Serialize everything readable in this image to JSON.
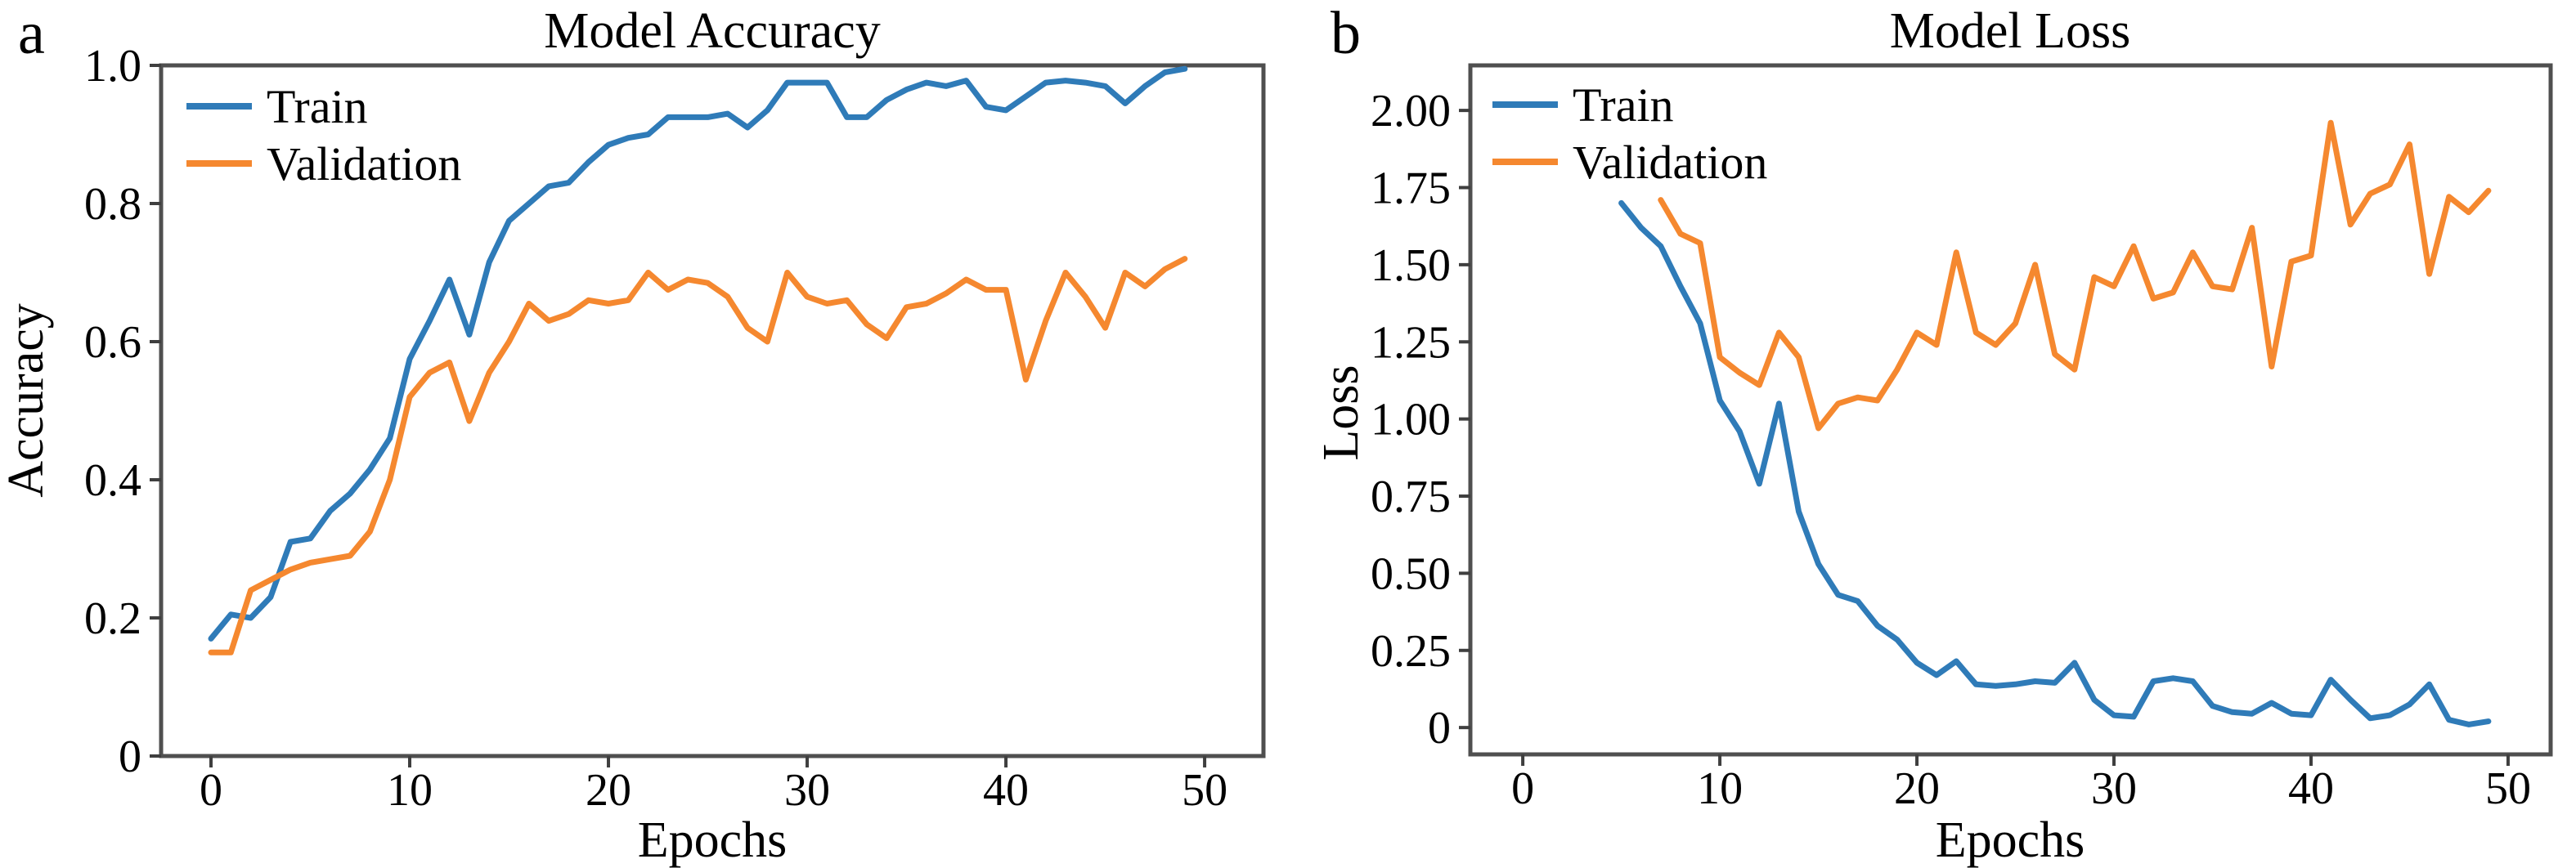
{
  "figure": {
    "background": "#ffffff",
    "spine_color": "#4f4f4f",
    "tick_color": "#3f3f3f"
  },
  "chart_data": [
    {
      "type": "line",
      "panel_label": "a",
      "title": "Model Accuracy",
      "xlabel": "Epochs",
      "ylabel": "Accuracy",
      "xlim": [
        -2.51,
        52.96
      ],
      "ylim": [
        0,
        1.0
      ],
      "grid": false,
      "legend_position": "upper left",
      "xticks": {
        "values": [
          0,
          10,
          20,
          30,
          40,
          50
        ],
        "labels": [
          "0",
          "10",
          "20",
          "30",
          "40",
          "50"
        ]
      },
      "yticks": {
        "values": [
          0,
          0.2,
          0.4,
          0.6,
          0.8,
          1.0
        ],
        "labels": [
          "0",
          "0.2",
          "0.4",
          "0.6",
          "0.8",
          "1.0"
        ]
      },
      "series": [
        {
          "name": "Train",
          "color": "#2f7bb8",
          "x_start": 0,
          "x_step": 1,
          "values": [
            0.17,
            0.205,
            0.2,
            0.23,
            0.31,
            0.315,
            0.355,
            0.38,
            0.415,
            0.46,
            0.575,
            0.63,
            0.69,
            0.61,
            0.715,
            0.775,
            0.8,
            0.825,
            0.83,
            0.86,
            0.885,
            0.895,
            0.9,
            0.925,
            0.925,
            0.925,
            0.93,
            0.91,
            0.935,
            0.975,
            0.975,
            0.975,
            0.925,
            0.925,
            0.95,
            0.965,
            0.975,
            0.97,
            0.978,
            0.94,
            0.935,
            0.955,
            0.975,
            0.978,
            0.975,
            0.97,
            0.945,
            0.97,
            0.99,
            0.995
          ]
        },
        {
          "name": "Validation",
          "color": "#f5882f",
          "x_start": 0,
          "x_step": 1,
          "values": [
            0.15,
            0.15,
            0.24,
            0.255,
            0.27,
            0.28,
            0.285,
            0.29,
            0.325,
            0.4,
            0.52,
            0.555,
            0.57,
            0.485,
            0.555,
            0.6,
            0.655,
            0.63,
            0.64,
            0.66,
            0.655,
            0.66,
            0.7,
            0.675,
            0.69,
            0.685,
            0.665,
            0.62,
            0.6,
            0.7,
            0.665,
            0.655,
            0.66,
            0.625,
            0.605,
            0.65,
            0.655,
            0.67,
            0.69,
            0.675,
            0.675,
            0.545,
            0.63,
            0.7,
            0.665,
            0.62,
            0.7,
            0.68,
            0.705,
            0.72
          ]
        }
      ]
    },
    {
      "type": "line",
      "panel_label": "b",
      "title": "Model Loss",
      "xlabel": "Epochs",
      "ylabel": "Loss",
      "xlim": [
        -2.66,
        52.16
      ],
      "ylim": [
        -0.087,
        2.146
      ],
      "grid": false,
      "legend_position": "upper left",
      "xticks": {
        "values": [
          0,
          10,
          20,
          30,
          40,
          50
        ],
        "labels": [
          "0",
          "10",
          "20",
          "30",
          "40",
          "50"
        ]
      },
      "yticks": {
        "values": [
          0,
          0.25,
          0.5,
          0.75,
          1.0,
          1.25,
          1.5,
          1.75,
          2.0
        ],
        "labels": [
          "0",
          "0.25",
          "0.50",
          "0.75",
          "1.00",
          "1.25",
          "1.50",
          "1.75",
          "2.00"
        ]
      },
      "series": [
        {
          "name": "Train",
          "color": "#2f7bb8",
          "x_start": 5,
          "x_step": 1,
          "values": [
            1.7,
            1.62,
            1.56,
            1.43,
            1.31,
            1.06,
            0.96,
            0.79,
            1.05,
            0.7,
            0.53,
            0.43,
            0.41,
            0.33,
            0.285,
            0.21,
            0.17,
            0.215,
            0.14,
            0.135,
            0.14,
            0.15,
            0.145,
            0.21,
            0.09,
            0.04,
            0.035,
            0.15,
            0.16,
            0.15,
            0.07,
            0.05,
            0.045,
            0.08,
            0.045,
            0.04,
            0.155,
            0.09,
            0.03,
            0.04,
            0.075,
            0.14,
            0.025,
            0.01,
            0.02
          ]
        },
        {
          "name": "Validation",
          "color": "#f5882f",
          "x_start": 7,
          "x_step": 1,
          "values": [
            1.71,
            1.6,
            1.57,
            1.2,
            1.15,
            1.11,
            1.28,
            1.2,
            0.97,
            1.05,
            1.07,
            1.06,
            1.16,
            1.28,
            1.24,
            1.54,
            1.28,
            1.24,
            1.31,
            1.5,
            1.21,
            1.16,
            1.46,
            1.43,
            1.56,
            1.39,
            1.41,
            1.54,
            1.43,
            1.42,
            1.62,
            1.17,
            1.51,
            1.53,
            1.96,
            1.63,
            1.73,
            1.76,
            1.89,
            1.47,
            1.72,
            1.67,
            1.74
          ]
        }
      ]
    }
  ]
}
